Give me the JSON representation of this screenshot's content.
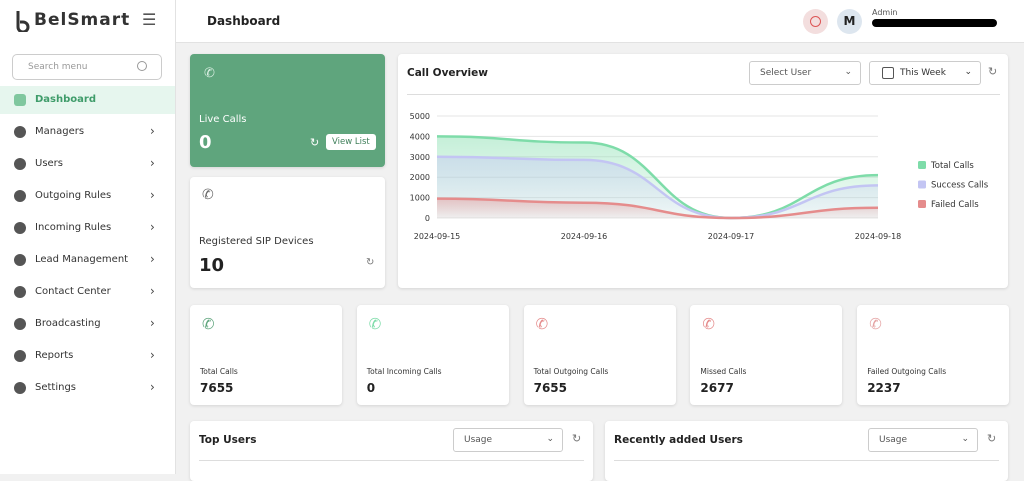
{
  "brand": {
    "name": "BelSmart"
  },
  "header": {
    "title": "Dashboard",
    "avatar": "M",
    "role": "Admin"
  },
  "sidebar": {
    "search_placeholder": "Search menu",
    "items": [
      "Dashboard",
      "Managers",
      "Users",
      "Outgoing Rules",
      "Incoming Rules",
      "Lead Management",
      "Contact Center",
      "Broadcasting",
      "Reports",
      "Settings"
    ]
  },
  "live_calls": {
    "label": "Live Calls",
    "value": 0,
    "button": "View List"
  },
  "sip_devices": {
    "label": "Registered SIP Devices",
    "value": 10
  },
  "stats": [
    {
      "label": "Total Calls",
      "value": 7655
    },
    {
      "label": "Total Incoming Calls",
      "value": 0
    },
    {
      "label": "Total Outgoing Calls",
      "value": 7655
    },
    {
      "label": "Missed Calls",
      "value": 2677
    },
    {
      "label": "Failed Outgoing Calls",
      "value": 2237
    }
  ],
  "panels": [
    {
      "title": "Top Users",
      "select": "Usage"
    },
    {
      "title": "Recently added Users",
      "select": "Usage"
    }
  ],
  "chart_data": {
    "type": "area",
    "title": "Call Overview",
    "user_select": "Select User",
    "range_select": "This Week",
    "x": [
      "2024-09-15",
      "2024-09-16",
      "2024-09-17",
      "2024-09-18"
    ],
    "series": [
      {
        "name": "Total Calls",
        "color": "#7edca9",
        "values": [
          4000,
          3700,
          0,
          2100
        ]
      },
      {
        "name": "Success Calls",
        "color": "#c3c5f3",
        "values": [
          3000,
          2850,
          0,
          1600
        ]
      },
      {
        "name": "Failed Calls",
        "color": "#e58c8c",
        "values": [
          950,
          750,
          0,
          500
        ]
      }
    ],
    "ylim": [
      0,
      5000
    ],
    "yticks": [
      0,
      1000,
      2000,
      3000,
      4000,
      5000
    ],
    "grid": true,
    "legend": "right"
  }
}
